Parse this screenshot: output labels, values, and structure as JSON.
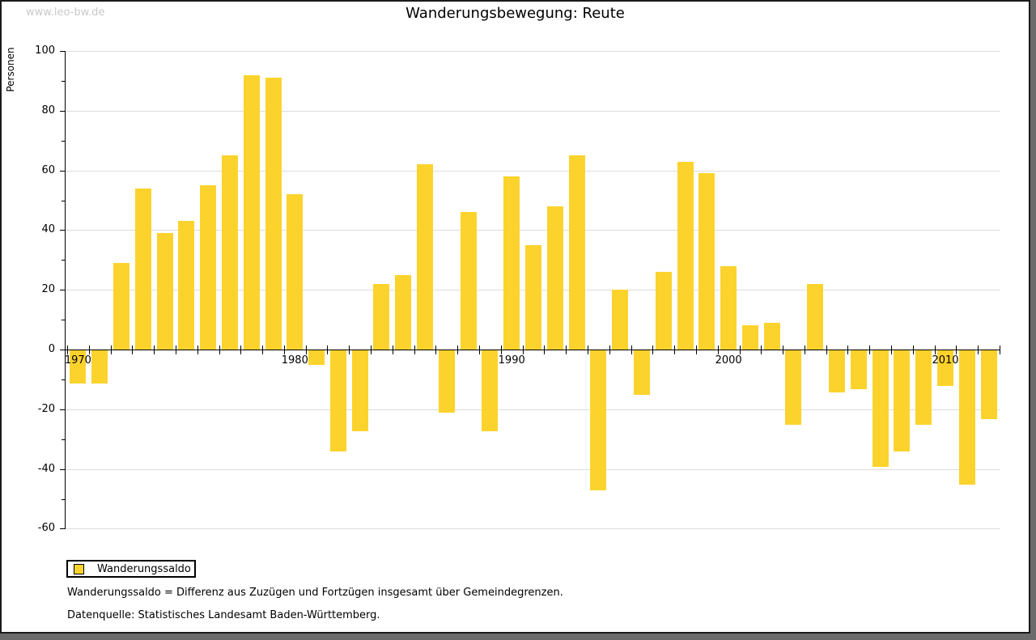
{
  "watermark": "www.leo-bw.de",
  "header": {
    "title": "Wanderungsbewegung: Reute"
  },
  "legend": {
    "label": "Wanderungssaldo"
  },
  "footnotes": {
    "definition": "Wanderungssaldo = Differenz aus Zuzügen und Fortzügen insgesamt über Gemeindegrenzen.",
    "source": "Datenquelle: Statistisches Landesamt Baden-Württemberg."
  },
  "colors": {
    "bar": "#FCD32D",
    "grid": "#dcdcdc",
    "axis": "#000000",
    "watermark": "#c9c9c9",
    "frame": "#6b6b6b"
  },
  "chart_data": {
    "type": "bar",
    "title": "Wanderungsbewegung: Reute",
    "xlabel": "",
    "ylabel": "Personen",
    "series_name": "Wanderungssaldo",
    "x": [
      1970,
      1971,
      1972,
      1973,
      1974,
      1975,
      1976,
      1977,
      1978,
      1979,
      1980,
      1981,
      1982,
      1983,
      1984,
      1985,
      1986,
      1987,
      1988,
      1989,
      1990,
      1991,
      1992,
      1993,
      1994,
      1995,
      1996,
      1997,
      1998,
      1999,
      2000,
      2001,
      2002,
      2003,
      2004,
      2005,
      2006,
      2007,
      2008,
      2009,
      2010,
      2011,
      2012
    ],
    "values": [
      -11,
      -11,
      29,
      54,
      39,
      43,
      55,
      65,
      92,
      91,
      52,
      -5,
      -34,
      -27,
      22,
      25,
      62,
      -21,
      46,
      -27,
      58,
      35,
      48,
      65,
      -47,
      20,
      -15,
      26,
      63,
      59,
      28,
      8,
      9,
      -25,
      22,
      -14,
      -13,
      -39,
      -34,
      -25,
      -12,
      -45,
      -23
    ],
    "ylim": [
      -60,
      100
    ],
    "ytick_step": 20,
    "ytick_minor_step": 10,
    "xtick_labels": [
      1970,
      1980,
      1990,
      2000,
      2010
    ],
    "grid": true,
    "legend_position": "bottom-left",
    "bar_color": "#FCD32D"
  }
}
